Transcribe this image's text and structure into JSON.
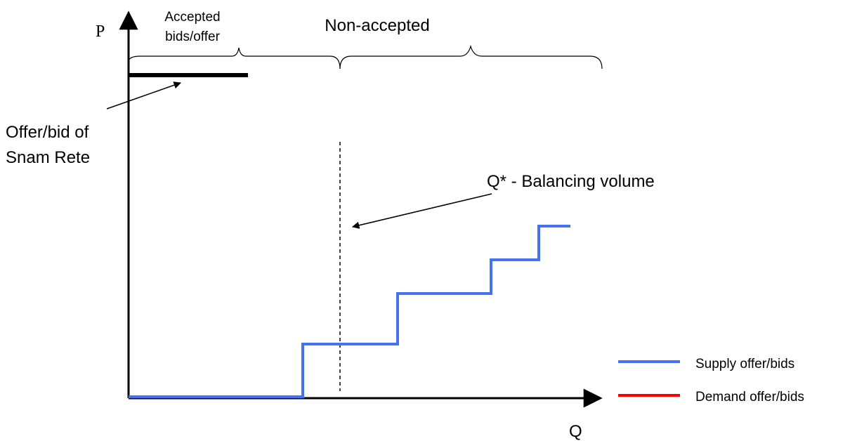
{
  "axes": {
    "y_label": "P",
    "x_label": "Q"
  },
  "annotations": {
    "accepted_line1": "Accepted",
    "accepted_line2": "bids/offer",
    "non_accepted": "Non-accepted",
    "snam_line1": "Offer/bid of",
    "snam_line2": "Snam Rete",
    "balancing": "Q* - Balancing volume"
  },
  "legend": {
    "supply": "Supply offer/bids",
    "demand": "Demand offer/bids"
  },
  "colors": {
    "supply": "#4472f0",
    "demand": "#ff0000",
    "axis": "#000000",
    "snam": "#000000"
  }
}
